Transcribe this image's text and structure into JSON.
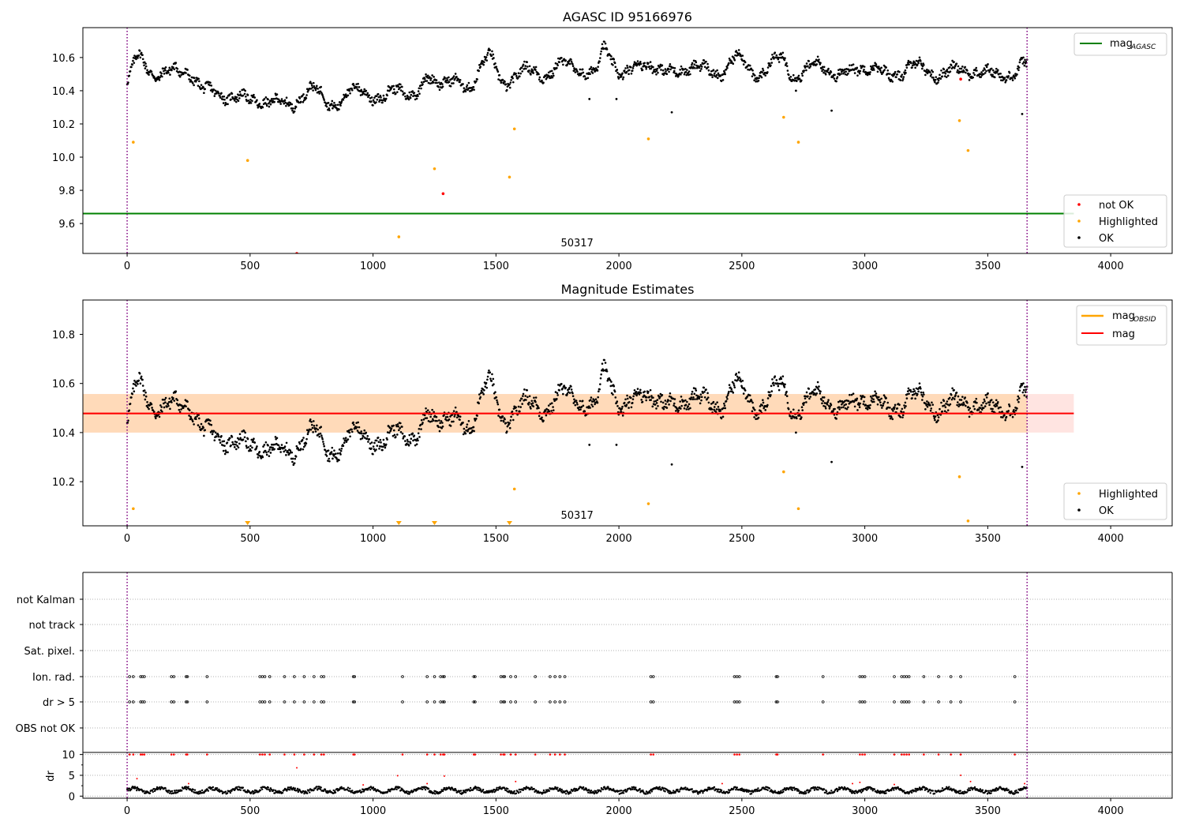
{
  "figure": {
    "title": "AGASC ID 95166976"
  },
  "colors": {
    "ok": "#000000",
    "highlighted": "#ffa500",
    "not_ok": "#ff0000",
    "mag_agasc": "#008000",
    "mag_obsid": "#ffa500",
    "mag": "#ff0000",
    "band_obs": "#ffdab9",
    "band_mag": "#ffe4e1",
    "obs_marker": "#800080"
  },
  "chart_data": [
    {
      "type": "scatter",
      "title": "",
      "xlim": [
        -180,
        4250
      ],
      "ylim": [
        9.42,
        10.78
      ],
      "xticks": [
        0,
        500,
        1000,
        1500,
        2000,
        2500,
        3000,
        3500,
        4000
      ],
      "yticks": [
        9.6,
        9.8,
        10.0,
        10.2,
        10.4,
        10.6
      ],
      "grid": false,
      "obs_boundaries": [
        0,
        3660
      ],
      "obsid_label": {
        "text": "50317",
        "x": 1830
      },
      "lines": [
        {
          "name": "mag_AGASC",
          "y": 9.66,
          "x_range": [
            -180,
            3850
          ]
        }
      ],
      "ok_trend": {
        "x_range": [
          0,
          3660
        ],
        "marks": [
          [
            0,
            10.45
          ],
          [
            40,
            10.6
          ],
          [
            120,
            10.5
          ],
          [
            240,
            10.52
          ],
          [
            320,
            10.4
          ],
          [
            480,
            10.35
          ],
          [
            650,
            10.32
          ],
          [
            760,
            10.4
          ],
          [
            850,
            10.32
          ],
          [
            950,
            10.42
          ],
          [
            1030,
            10.33
          ],
          [
            1100,
            10.43
          ],
          [
            1170,
            10.36
          ],
          [
            1230,
            10.48
          ],
          [
            1320,
            10.45
          ],
          [
            1380,
            10.42
          ],
          [
            1470,
            10.6
          ],
          [
            1530,
            10.45
          ],
          [
            1620,
            10.52
          ],
          [
            1700,
            10.5
          ],
          [
            1780,
            10.56
          ],
          [
            1900,
            10.5
          ],
          [
            1940,
            10.65
          ],
          [
            2020,
            10.5
          ],
          [
            2120,
            10.57
          ],
          [
            2200,
            10.5
          ],
          [
            2300,
            10.55
          ],
          [
            2400,
            10.5
          ],
          [
            2480,
            10.6
          ],
          [
            2560,
            10.5
          ],
          [
            2660,
            10.59
          ],
          [
            2720,
            10.49
          ],
          [
            2820,
            10.56
          ],
          [
            2900,
            10.49
          ],
          [
            3000,
            10.55
          ],
          [
            3100,
            10.49
          ],
          [
            3200,
            10.55
          ],
          [
            3300,
            10.5
          ],
          [
            3400,
            10.53
          ],
          [
            3500,
            10.5
          ],
          [
            3600,
            10.5
          ],
          [
            3660,
            10.56
          ]
        ]
      },
      "series": [
        {
          "name": "OK",
          "points": [
            [
              2215,
              10.27
            ],
            [
              2865,
              10.28
            ],
            [
              3640,
              10.26
            ],
            [
              1990,
              10.35
            ],
            [
              2720,
              10.4
            ],
            [
              1880,
              10.35
            ]
          ]
        },
        {
          "name": "Highlighted",
          "points": [
            [
              25,
              10.09
            ],
            [
              490,
              9.98
            ],
            [
              1250,
              9.93
            ],
            [
              1555,
              9.88
            ],
            [
              1575,
              10.17
            ],
            [
              2120,
              10.11
            ],
            [
              2670,
              10.24
            ],
            [
              2730,
              10.09
            ],
            [
              3385,
              10.22
            ],
            [
              3420,
              10.04
            ],
            [
              1105,
              9.52
            ]
          ]
        },
        {
          "name": "not OK",
          "points": [
            [
              1285,
              9.78
            ],
            [
              690,
              9.42
            ],
            [
              3390,
              10.47
            ]
          ]
        }
      ],
      "legend": [
        {
          "location": "top-right",
          "entries": [
            {
              "label": "mag",
              "sub": "AGASC",
              "kind": "line",
              "color_key": "mag_agasc"
            }
          ]
        },
        {
          "location": "bottom-right",
          "entries": [
            {
              "label": "not OK",
              "kind": "dot",
              "color_key": "not_ok"
            },
            {
              "label": "Highlighted",
              "kind": "dot",
              "color_key": "highlighted"
            },
            {
              "label": "OK",
              "kind": "dot",
              "color_key": "ok"
            }
          ]
        }
      ]
    },
    {
      "type": "scatter",
      "title": "Magnitude Estimates",
      "xlim": [
        -180,
        4250
      ],
      "ylim": [
        10.02,
        10.94
      ],
      "xticks": [
        0,
        500,
        1000,
        1500,
        2000,
        2500,
        3000,
        3500,
        4000
      ],
      "yticks": [
        10.2,
        10.4,
        10.6,
        10.8
      ],
      "grid": false,
      "obs_boundaries": [
        0,
        3660
      ],
      "obsid_label": {
        "text": "50317",
        "x": 1830
      },
      "lines": [
        {
          "name": "mag",
          "y": 10.478,
          "x_range": [
            -180,
            3850
          ]
        },
        {
          "name": "mag_OBSID",
          "y": 10.478,
          "x_range": [
            -180,
            3660
          ]
        }
      ],
      "bands": [
        {
          "name": "mag band",
          "y_range": [
            10.4,
            10.557
          ],
          "x_range": [
            -180,
            3850
          ]
        },
        {
          "name": "obsid band",
          "y_range": [
            10.4,
            10.557
          ],
          "x_range": [
            -180,
            3660
          ]
        }
      ],
      "ok_trend": {
        "x_range": [
          0,
          3660
        ],
        "marks": [
          [
            0,
            10.45
          ],
          [
            40,
            10.6
          ],
          [
            120,
            10.5
          ],
          [
            240,
            10.52
          ],
          [
            320,
            10.4
          ],
          [
            480,
            10.35
          ],
          [
            650,
            10.32
          ],
          [
            760,
            10.4
          ],
          [
            850,
            10.32
          ],
          [
            950,
            10.42
          ],
          [
            1030,
            10.33
          ],
          [
            1100,
            10.43
          ],
          [
            1170,
            10.36
          ],
          [
            1230,
            10.48
          ],
          [
            1320,
            10.45
          ],
          [
            1380,
            10.42
          ],
          [
            1470,
            10.6
          ],
          [
            1530,
            10.45
          ],
          [
            1620,
            10.52
          ],
          [
            1700,
            10.5
          ],
          [
            1780,
            10.56
          ],
          [
            1900,
            10.5
          ],
          [
            1940,
            10.65
          ],
          [
            2020,
            10.5
          ],
          [
            2120,
            10.57
          ],
          [
            2200,
            10.5
          ],
          [
            2300,
            10.55
          ],
          [
            2400,
            10.5
          ],
          [
            2480,
            10.6
          ],
          [
            2560,
            10.5
          ],
          [
            2660,
            10.59
          ],
          [
            2720,
            10.49
          ],
          [
            2820,
            10.56
          ],
          [
            2900,
            10.49
          ],
          [
            3000,
            10.55
          ],
          [
            3100,
            10.49
          ],
          [
            3200,
            10.55
          ],
          [
            3300,
            10.5
          ],
          [
            3400,
            10.53
          ],
          [
            3500,
            10.5
          ],
          [
            3600,
            10.5
          ],
          [
            3660,
            10.56
          ]
        ]
      },
      "series": [
        {
          "name": "OK",
          "points": [
            [
              2215,
              10.27
            ],
            [
              2865,
              10.28
            ],
            [
              3640,
              10.26
            ],
            [
              1990,
              10.35
            ],
            [
              2720,
              10.4
            ],
            [
              1880,
              10.35
            ]
          ]
        },
        {
          "name": "Highlighted",
          "points": [
            [
              25,
              10.09
            ],
            [
              1575,
              10.17
            ],
            [
              2120,
              10.11
            ],
            [
              2670,
              10.24
            ],
            [
              2730,
              10.09
            ],
            [
              3385,
              10.22
            ],
            [
              3420,
              10.04
            ]
          ]
        },
        {
          "name": "Highlighted (below axis)",
          "points": [
            [
              490,
              10.02
            ],
            [
              1105,
              10.02
            ],
            [
              1250,
              10.02
            ],
            [
              1555,
              10.02
            ]
          ]
        }
      ],
      "legend": [
        {
          "location": "top-right",
          "entries": [
            {
              "label": "mag",
              "sub": "OBSID",
              "kind": "line",
              "color_key": "mag_obsid"
            },
            {
              "label": "mag",
              "kind": "line",
              "color_key": "mag"
            }
          ]
        },
        {
          "location": "bottom-right",
          "entries": [
            {
              "label": "Highlighted",
              "kind": "dot",
              "color_key": "highlighted"
            },
            {
              "label": "OK",
              "kind": "dot",
              "color_key": "ok"
            }
          ]
        }
      ]
    },
    {
      "type": "scatter",
      "title": "",
      "xlim": [
        -180,
        4250
      ],
      "categories": [
        "not Kalman",
        "not track",
        "Sat. pixel.",
        "Ion. rad.",
        "dr > 5",
        "OBS not OK"
      ],
      "obs_boundaries": [
        0,
        3660
      ],
      "flag_events_x": [
        10,
        25,
        55,
        62,
        70,
        180,
        190,
        240,
        245,
        325,
        540,
        550,
        560,
        580,
        640,
        680,
        720,
        760,
        790,
        800,
        920,
        925,
        1120,
        1220,
        1250,
        1275,
        1285,
        1290,
        1410,
        1415,
        1520,
        1530,
        1535,
        1560,
        1580,
        1660,
        1720,
        1740,
        1760,
        1780,
        2130,
        2140,
        2470,
        2480,
        2490,
        2640,
        2645,
        2830,
        2980,
        2990,
        3000,
        3120,
        3150,
        3160,
        3170,
        3180,
        3240,
        3300,
        3350,
        3390,
        3610
      ],
      "grid": true
    },
    {
      "type": "scatter",
      "title": "",
      "xlim": [
        -180,
        4250
      ],
      "ylim": [
        -0.5,
        10.5
      ],
      "xticks": [
        0,
        500,
        1000,
        1500,
        2000,
        2500,
        3000,
        3500,
        4000
      ],
      "yticks": [
        0,
        5,
        10
      ],
      "ylabel": "dr",
      "grid": true,
      "obs_boundaries": [
        0,
        3660
      ],
      "dr_ok_trend": {
        "x_range": [
          0,
          3660
        ],
        "mean": 1.4
      },
      "series": [
        {
          "name": "dr > 5 (clipped)",
          "y": 10
        },
        {
          "name": "outliers",
          "points": [
            [
              690,
              6.8
            ],
            [
              40,
              4.2
            ],
            [
              1100,
              4.9
            ],
            [
              1290,
              4.8
            ],
            [
              3390,
              5.0
            ],
            [
              3430,
              3.5
            ],
            [
              250,
              3.0
            ],
            [
              1220,
              3.0
            ],
            [
              1580,
              3.5
            ],
            [
              2950,
              3.0
            ],
            [
              960,
              2.7
            ],
            [
              3120,
              2.8
            ],
            [
              3650,
              3.0
            ],
            [
              2980,
              3.3
            ],
            [
              2420,
              3.0
            ]
          ]
        }
      ]
    }
  ]
}
